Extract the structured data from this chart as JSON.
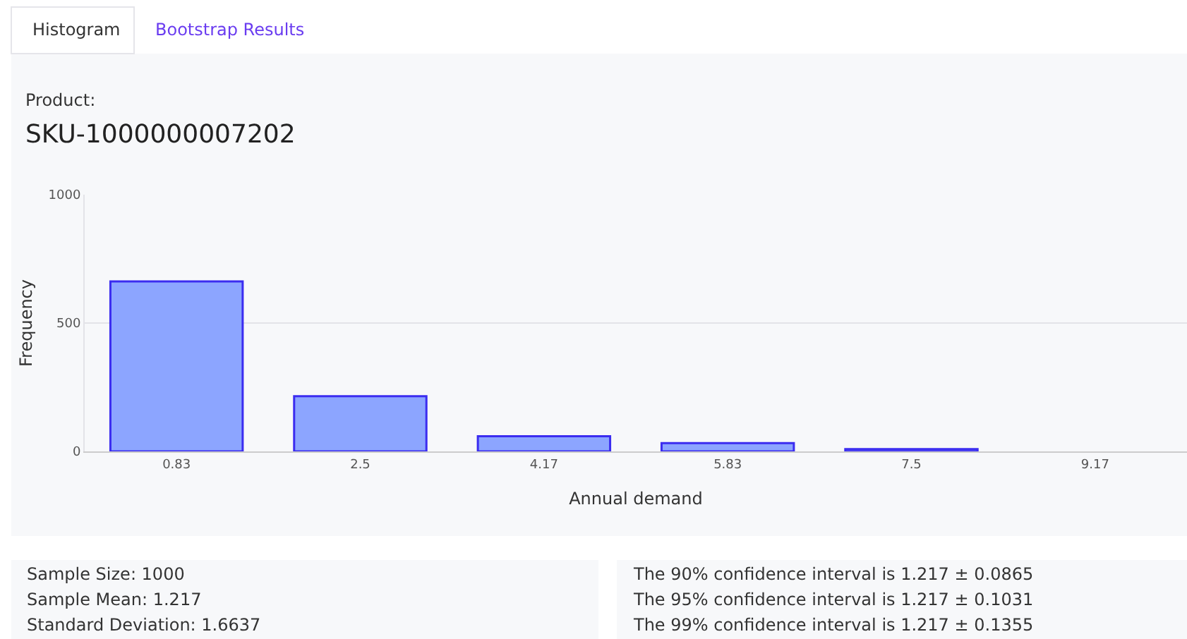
{
  "chart_data": {
    "type": "bar",
    "subtitle": "Product:",
    "title": "SKU-1000000007202",
    "xlabel": "Annual demand",
    "ylabel": "Frequency",
    "categories": [
      "0.83",
      "2.5",
      "4.17",
      "5.83",
      "7.5",
      "9.17"
    ],
    "values": [
      662,
      215,
      59,
      32,
      9,
      0
    ],
    "color": "#8ca5ff",
    "ylim": [
      0,
      1000
    ],
    "yticks": [
      0,
      500,
      1000
    ],
    "grid": "y",
    "annotations": [
      "Histogram",
      "Bootstrap Results",
      "Sample Size: 1000",
      "Sample Mean: 1.217",
      "Standard Deviation: 1.6637",
      "The 90% confidence interval is 1.217 ± 0.0865",
      "The 95% confidence interval is 1.217 ± 0.1031",
      "The 99% confidence interval is 1.217 ± 0.1355"
    ]
  }
}
